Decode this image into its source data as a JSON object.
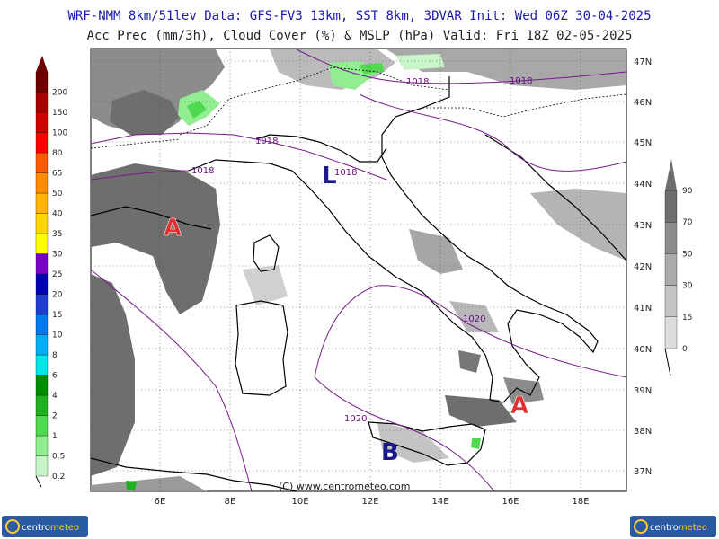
{
  "header": {
    "line1": "WRF-NMM 8km/51lev  Data: GFS-FV3 13km, SST 8km, 3DVAR  Init: Wed 06Z 30-04-2025",
    "line2": "Acc Prec (mm/3h), Cloud Cover (%) & MSLP (hPa)  Valid: Fri 18Z 02-05-2025"
  },
  "precip_legend": {
    "levels": [
      "0.2",
      "0.5",
      "1",
      "2",
      "4",
      "6",
      "8",
      "10",
      "15",
      "20",
      "25",
      "30",
      "35",
      "40",
      "50",
      "65",
      "80",
      "100",
      "150",
      "200"
    ],
    "colors": [
      "#c8f5c8",
      "#90ee90",
      "#50d850",
      "#20b020",
      "#008c00",
      "#00e6e6",
      "#00b0f0",
      "#0078f0",
      "#1e3cd2",
      "#0000b4",
      "#7800c8",
      "#ffff00",
      "#ffd700",
      "#ffb400",
      "#ff8c00",
      "#ff5a00",
      "#ff0000",
      "#d20000",
      "#aa0000",
      "#6e0000"
    ]
  },
  "cloud_legend": {
    "levels": [
      "0",
      "15",
      "30",
      "50",
      "70",
      "90"
    ],
    "colors": [
      "#f0f0f0",
      "#dcdcdc",
      "#c4c4c4",
      "#aaaaaa",
      "#8c8c8c",
      "#6e6e6e"
    ]
  },
  "map": {
    "lon_labels": [
      "6E",
      "8E",
      "10E",
      "12E",
      "14E",
      "16E",
      "18E"
    ],
    "lat_labels": [
      "47N",
      "46N",
      "45N",
      "44N",
      "43N",
      "42N",
      "41N",
      "40N",
      "39N",
      "38N",
      "37N"
    ],
    "isobar_labels": [
      "1018",
      "1018",
      "1018",
      "1018",
      "1018",
      "1020",
      "1020"
    ],
    "pressure_centers": [
      {
        "label": "A",
        "type": "high",
        "color": "#e03030"
      },
      {
        "label": "L",
        "type": "low",
        "color": "#1a1a8c"
      },
      {
        "label": "A",
        "type": "high",
        "color": "#e03030"
      },
      {
        "label": "B",
        "type": "low",
        "color": "#1a1a8c"
      }
    ],
    "copyright": "(C) www.centrometeo.com"
  },
  "logos": {
    "text_left": "centro",
    "text_right": "meteo"
  }
}
